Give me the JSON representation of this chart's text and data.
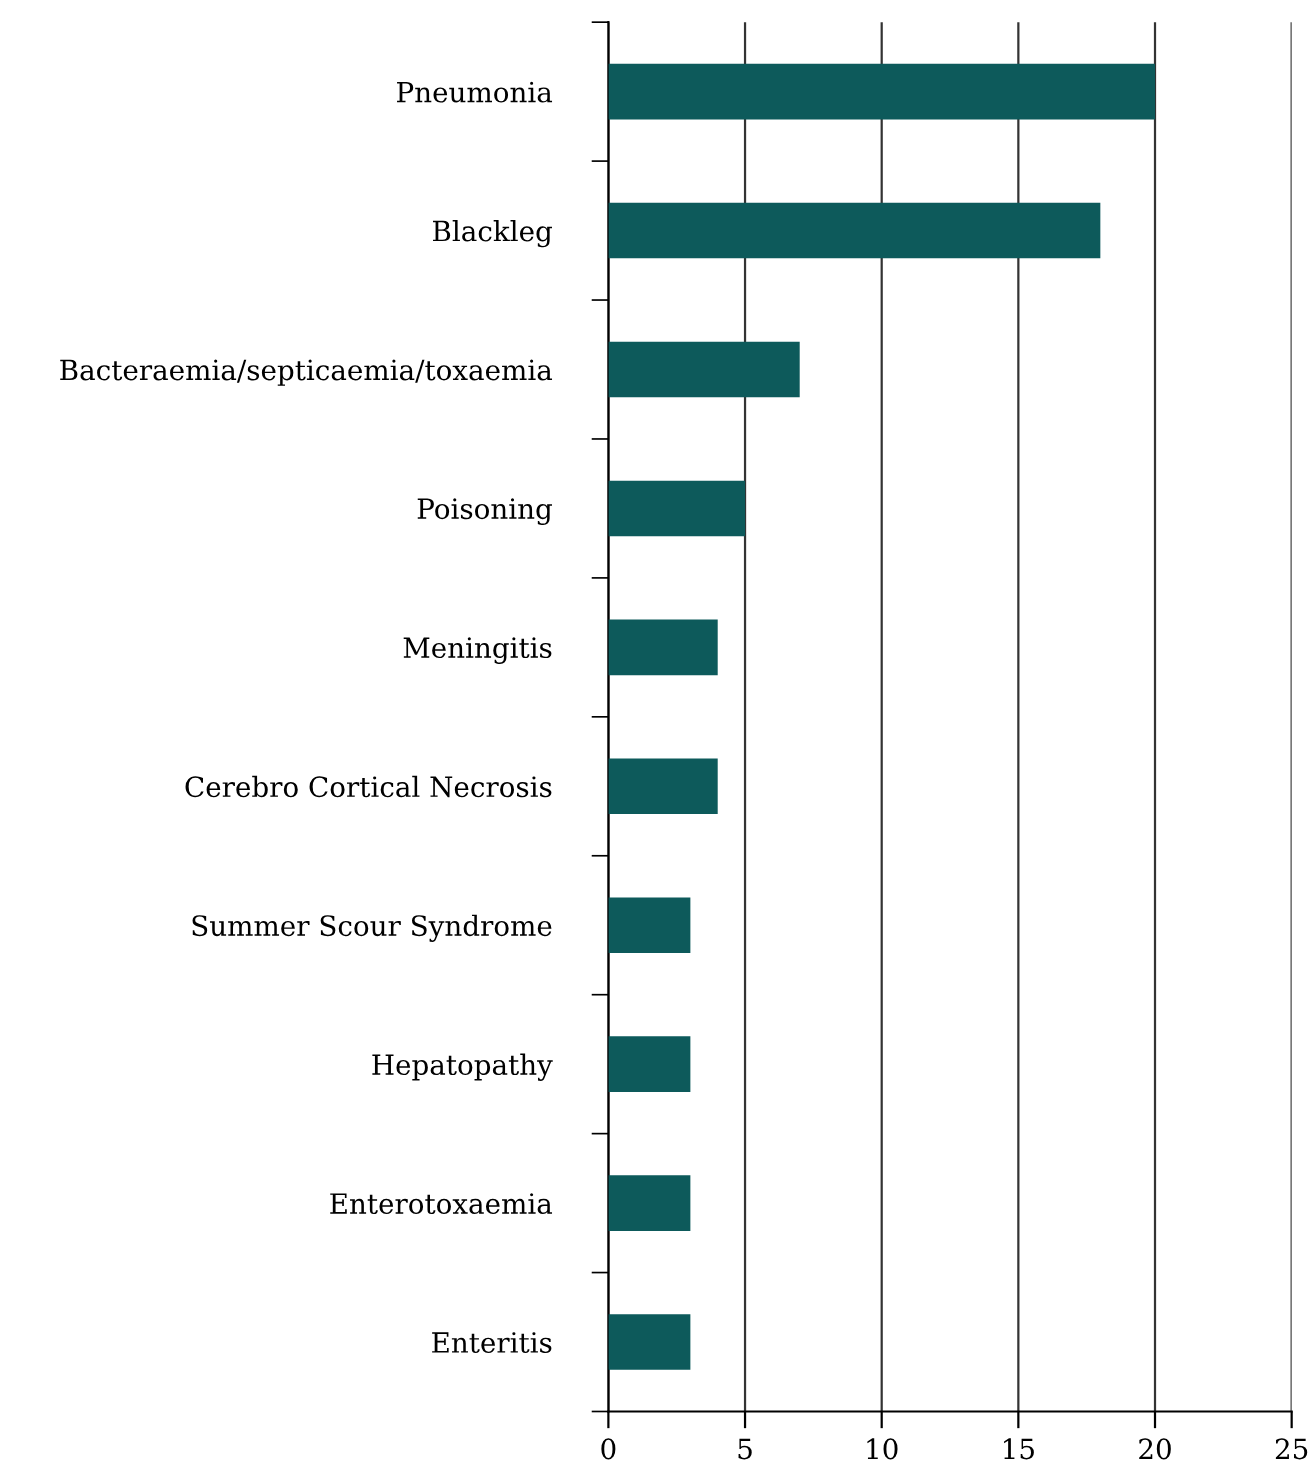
{
  "chart_data": {
    "type": "bar",
    "orientation": "horizontal",
    "categories": [
      "Pneumonia",
      "Blackleg",
      "Bacteraemia/septicaemia/toxaemia",
      "Poisoning",
      "Meningitis",
      "Cerebro Cortical Necrosis",
      "Summer Scour Syndrome",
      "Hepatopathy",
      "Enterotoxaemia",
      "Enteritis"
    ],
    "values": [
      20,
      18,
      7,
      5,
      4,
      4,
      3,
      3,
      3,
      3
    ],
    "color": "#0d5a5b",
    "xlim": [
      0,
      25
    ],
    "xticks": [
      0,
      5,
      10,
      15,
      20,
      25
    ],
    "grid": "x"
  }
}
